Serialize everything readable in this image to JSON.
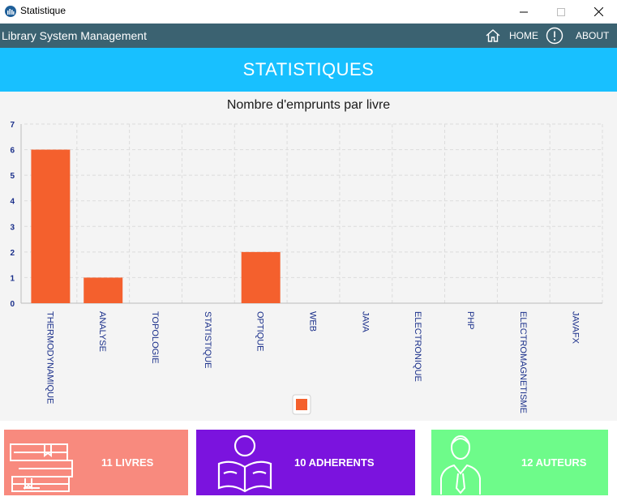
{
  "window": {
    "title": "Statistique",
    "controls": [
      "minimize-icon",
      "maximize-icon",
      "close-icon"
    ]
  },
  "navbar": {
    "brand": "Library System Management",
    "home_label": "HOME",
    "home_icon": "home-icon",
    "about_label": "ABOUT",
    "about_icon": "info-icon"
  },
  "header": {
    "title": "STATISTIQUES"
  },
  "chart_data": {
    "type": "bar",
    "title": "Nombre d'emprunts par livre",
    "categories": [
      "THERMODYNAMIQUE",
      "ANALYSE",
      "TOPOLOGIE",
      "STATISTIQUE",
      "OPTIQUE",
      "WEB",
      "JAVA",
      "ELECTRONIQUE",
      "PHP",
      "ELECTROMAGNETISME",
      "JAVAFX"
    ],
    "values": [
      6,
      1,
      0,
      0,
      2,
      0,
      0,
      0,
      0,
      0,
      0
    ],
    "ylim": [
      0,
      7
    ],
    "yticks": [
      0,
      1,
      2,
      3,
      4,
      5,
      6,
      7
    ],
    "xlabel": "",
    "ylabel": "",
    "grid": true,
    "legend": "bottom-center",
    "bar_color": "#f4602d"
  },
  "cards": {
    "livres": {
      "label": "11 LIVRES",
      "icon": "books-icon",
      "color": "#f88a7e"
    },
    "adherents": {
      "label": "10 ADHERENTS",
      "icon": "reader-icon",
      "color": "#7b13de"
    },
    "auteurs": {
      "label": "12 AUTEURS",
      "icon": "author-icon",
      "color": "#6efb8a"
    }
  }
}
